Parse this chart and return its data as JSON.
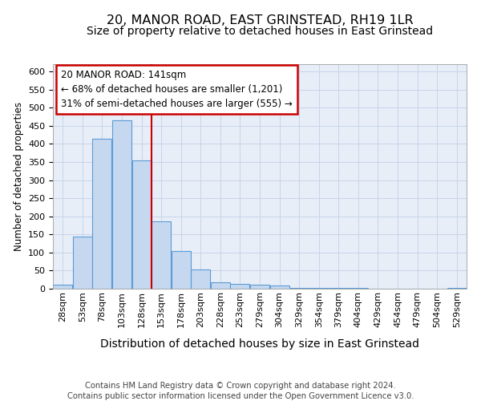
{
  "title": "20, MANOR ROAD, EAST GRINSTEAD, RH19 1LR",
  "subtitle": "Size of property relative to detached houses in East Grinstead",
  "xlabel": "Distribution of detached houses by size in East Grinstead",
  "ylabel": "Number of detached properties",
  "footer_line1": "Contains HM Land Registry data © Crown copyright and database right 2024.",
  "footer_line2": "Contains public sector information licensed under the Open Government Licence v3.0.",
  "bar_labels": [
    "28sqm",
    "53sqm",
    "78sqm",
    "103sqm",
    "128sqm",
    "153sqm",
    "178sqm",
    "203sqm",
    "228sqm",
    "253sqm",
    "279sqm",
    "304sqm",
    "329sqm",
    "354sqm",
    "379sqm",
    "404sqm",
    "429sqm",
    "454sqm",
    "479sqm",
    "504sqm",
    "529sqm"
  ],
  "bar_values": [
    10,
    143,
    415,
    465,
    355,
    185,
    103,
    53,
    18,
    14,
    10,
    8,
    3,
    2,
    2,
    2,
    0,
    0,
    0,
    0,
    3
  ],
  "bar_color": "#c5d8f0",
  "bar_edge_color": "#5b9bd5",
  "grid_color": "#c8d4e8",
  "background_color": "#e8eef8",
  "vline_color": "#cc0000",
  "annotation_line1": "20 MANOR ROAD: 141sqm",
  "annotation_line2": "← 68% of detached houses are smaller (1,201)",
  "annotation_line3": "31% of semi-detached houses are larger (555) →",
  "annotation_box_color": "#cc0000",
  "ylim": [
    0,
    620
  ],
  "yticks": [
    0,
    50,
    100,
    150,
    200,
    250,
    300,
    350,
    400,
    450,
    500,
    550,
    600
  ],
  "title_fontsize": 11.5,
  "subtitle_fontsize": 10,
  "xlabel_fontsize": 10,
  "ylabel_fontsize": 8.5,
  "tick_fontsize": 8,
  "annotation_fontsize": 8.5,
  "footer_fontsize": 7.2
}
